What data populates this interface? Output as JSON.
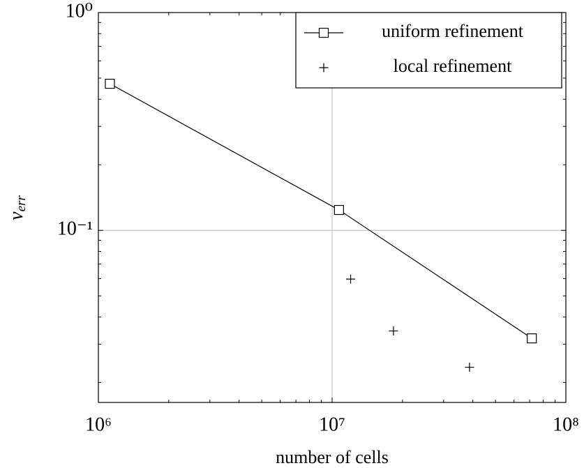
{
  "chart_data": {
    "type": "line",
    "xlabel": "number of cells",
    "ylabel": "v",
    "ylabel_subscript": "err",
    "xscale": "log",
    "yscale": "log",
    "xlim": [
      1000000,
      100000000
    ],
    "ylim": [
      0.0162,
      1
    ],
    "xticks": [
      {
        "value": 1000000,
        "label": "10⁶"
      },
      {
        "value": 10000000,
        "label": "10⁷"
      },
      {
        "value": 100000000,
        "label": "10⁸"
      }
    ],
    "yticks": [
      {
        "value": 0.1,
        "label": "10⁻¹"
      },
      {
        "value": 1,
        "label": "10⁰"
      }
    ],
    "grid": true,
    "legend": "upper right",
    "series": [
      {
        "name": "uniform refinement",
        "color": "#000000",
        "marker": "square",
        "line": true,
        "x": [
          1120000,
          10700000,
          71500000
        ],
        "values": [
          0.471,
          0.124,
          0.0319
        ]
      },
      {
        "name": "local refinement",
        "color": "#000000",
        "marker": "plus",
        "line": false,
        "x": [
          12000000,
          18300000,
          38700000
        ],
        "values": [
          0.0597,
          0.0345,
          0.0235
        ]
      }
    ]
  }
}
